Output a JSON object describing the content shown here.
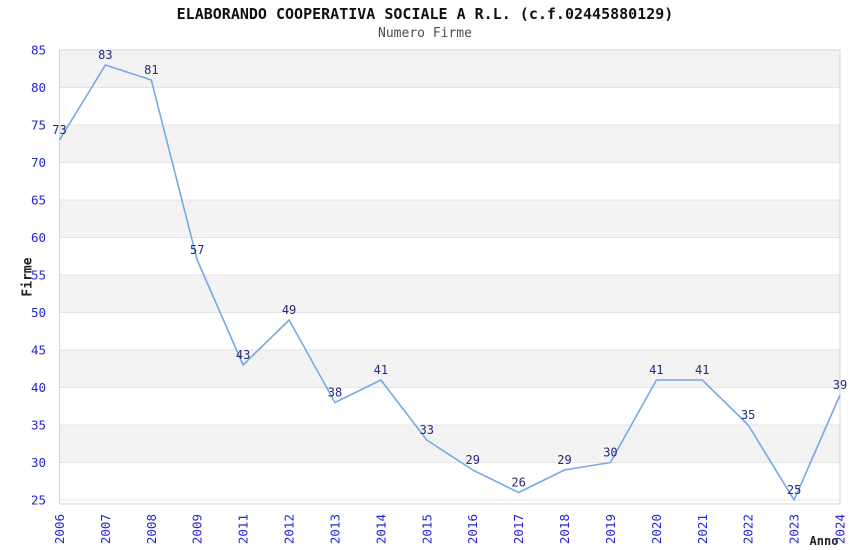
{
  "header": {
    "title": "ELABORANDO COOPERATIVA SOCIALE A R.L. (c.f.02445880129)",
    "subtitle": "Numero Firme"
  },
  "chart_data": {
    "type": "line",
    "title": "ELABORANDO COOPERATIVA SOCIALE A R.L. (c.f.02445880129)",
    "subtitle": "Numero Firme",
    "xlabel": "Anno",
    "ylabel": "Firme",
    "categories": [
      "2006",
      "2007",
      "2008",
      "2009",
      "2011",
      "2012",
      "2013",
      "2014",
      "2015",
      "2016",
      "2017",
      "2018",
      "2019",
      "2020",
      "2021",
      "2022",
      "2023",
      "2024"
    ],
    "values": [
      73,
      83,
      81,
      57,
      43,
      49,
      38,
      41,
      33,
      29,
      26,
      29,
      30,
      41,
      41,
      35,
      25,
      39
    ],
    "ylim": [
      25,
      85
    ],
    "ytick_step": 5,
    "yticks": [
      25,
      30,
      35,
      40,
      45,
      50,
      55,
      60,
      65,
      70,
      75,
      80,
      85
    ],
    "grid": "horizontal",
    "background_bands": "alternating gray/white per 5-unit interval, gray starts at top (85-80)",
    "legend": "none",
    "data_labels": "shown above each point",
    "x_tick_rotation": -90
  },
  "colors": {
    "line": "#74aae8",
    "tick_label": "#2424d4",
    "data_label": "#28287d",
    "band_gray": "#f3f3f3",
    "gridline": "#e4e4e4",
    "plot_border": "#d6d6d6",
    "title": "#111111",
    "subtitle": "#4d4d4d",
    "axis_title": "#222222",
    "background": "#ffffff"
  }
}
